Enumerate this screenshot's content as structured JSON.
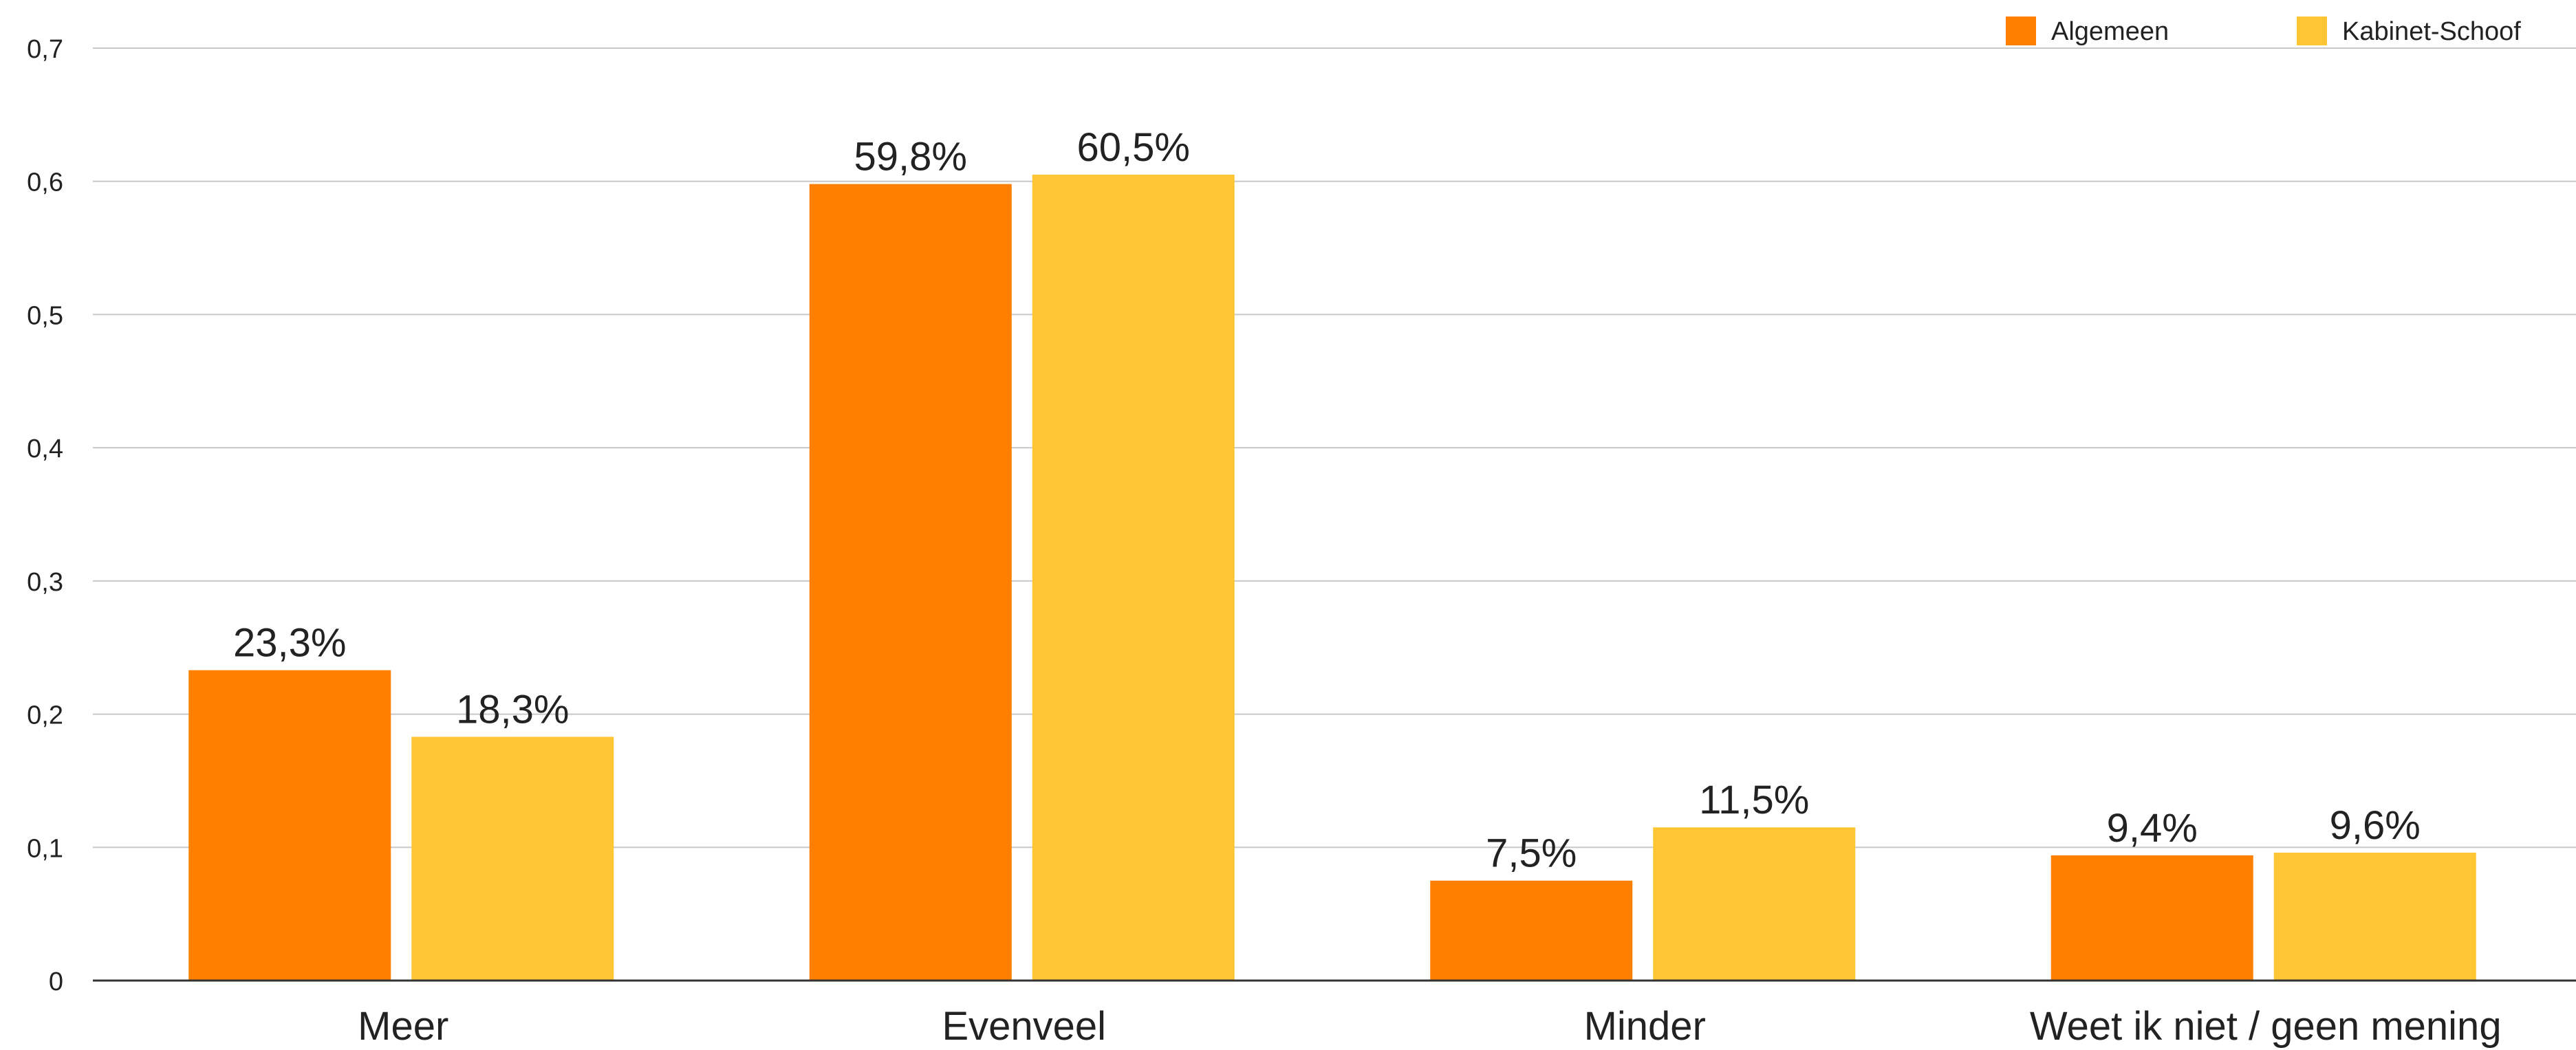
{
  "chart_data": {
    "type": "bar",
    "categories": [
      "Meer",
      "Evenveel",
      "Minder",
      "Weet ik niet / geen mening"
    ],
    "series": [
      {
        "name": "Algemeen",
        "color": "#FF7F00",
        "values": [
          0.233,
          0.598,
          0.075,
          0.094
        ],
        "labels": [
          "23,3%",
          "59,8%",
          "7,5%",
          "9,4%"
        ]
      },
      {
        "name": "Kabinet-Schoof",
        "color": "#FFC533",
        "values": [
          0.183,
          0.605,
          0.115,
          0.096
        ],
        "labels": [
          "18,3%",
          "60,5%",
          "11,5%",
          "9,6%"
        ]
      }
    ],
    "ylim": [
      0,
      0.7
    ],
    "yticks": [
      {
        "value": 0,
        "label": "0"
      },
      {
        "value": 0.1,
        "label": "0,1"
      },
      {
        "value": 0.2,
        "label": "0,2"
      },
      {
        "value": 0.3,
        "label": "0,3"
      },
      {
        "value": 0.4,
        "label": "0,4"
      },
      {
        "value": 0.5,
        "label": "0,5"
      },
      {
        "value": 0.6,
        "label": "0,6"
      },
      {
        "value": 0.7,
        "label": "0,7"
      }
    ],
    "title": "",
    "xlabel": "",
    "ylabel": "",
    "grid": true,
    "legend_position": "top-right"
  }
}
